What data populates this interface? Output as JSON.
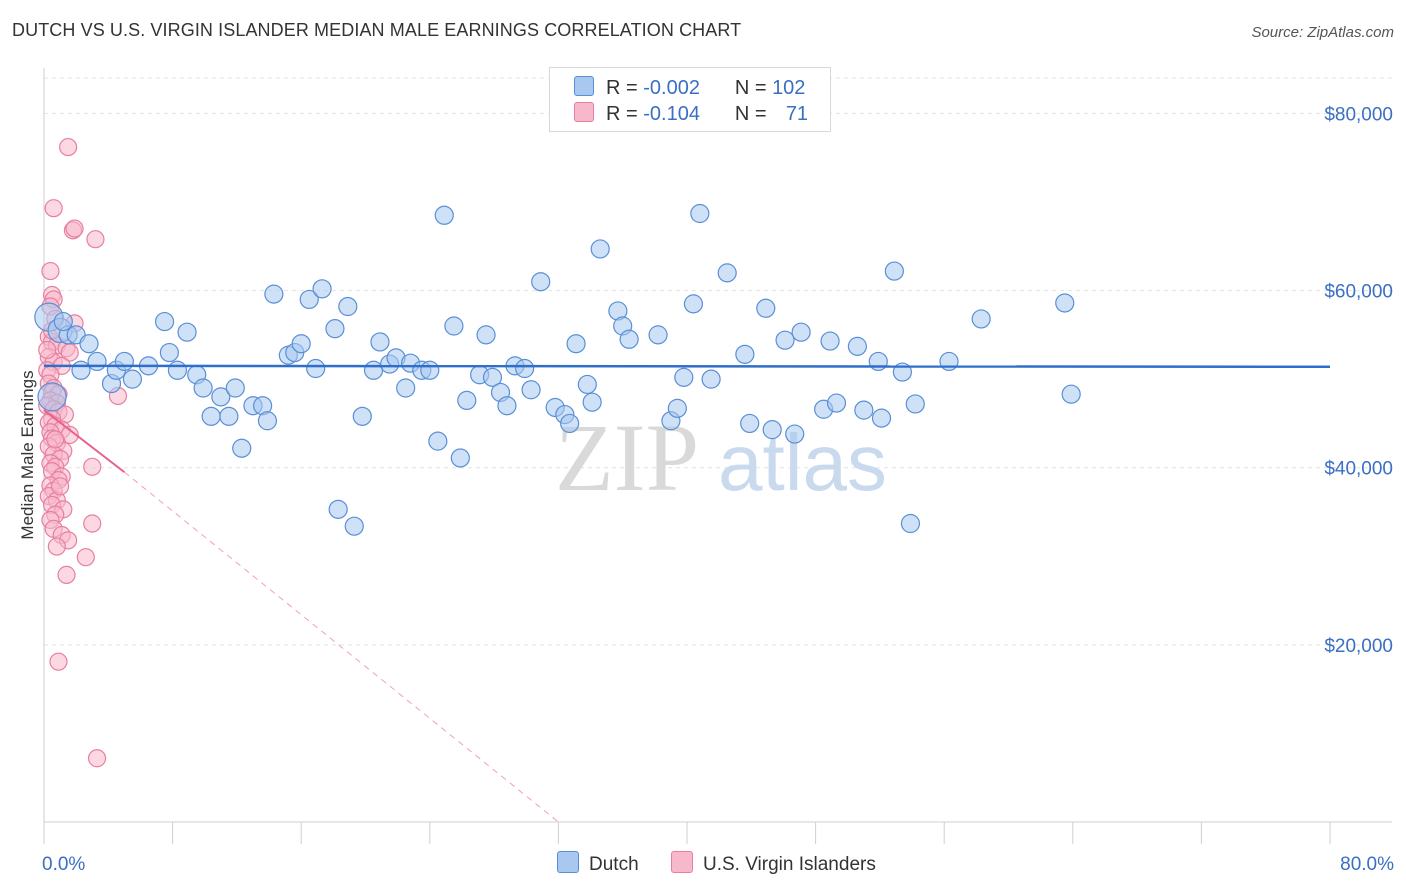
{
  "title": "DUTCH VS U.S. VIRGIN ISLANDER MEDIAN MALE EARNINGS CORRELATION CHART",
  "source": "Source: ZipAtlas.com",
  "watermark": {
    "zip": "ZIP",
    "atlas": "atlas"
  },
  "legend": {
    "r_label": "R =",
    "n_label": "N =",
    "rows": [
      {
        "r": "-0.002",
        "n": "102"
      },
      {
        "r": "-0.104",
        "n": "71"
      }
    ]
  },
  "colors": {
    "dutch_fill": "#a8c8f0",
    "dutch_stroke": "#5a8fd6",
    "dutch_line": "#2f6fcc",
    "vi_fill": "#f7b8cb",
    "vi_stroke": "#e87fa0",
    "vi_line": "#e8608a",
    "axis_text": "#3a6fc4",
    "grid": "#e3e3e3"
  },
  "chart_data": {
    "type": "scatter",
    "title": "DUTCH VS U.S. VIRGIN ISLANDER MEDIAN MALE EARNINGS CORRELATION CHART",
    "xlabel": "",
    "ylabel": "Median Male Earnings",
    "xlim": [
      0,
      80
    ],
    "ylim": [
      0,
      84000
    ],
    "x_tick_labels": [
      "0.0%",
      "80.0%"
    ],
    "y_ticks": [
      {
        "value": 20000,
        "label": "$20,000"
      },
      {
        "value": 40000,
        "label": "$40,000"
      },
      {
        "value": 60000,
        "label": "$60,000"
      },
      {
        "value": 80000,
        "label": "$80,000"
      }
    ],
    "series": [
      {
        "name": "Dutch",
        "trend": {
          "x1": 0,
          "y1": 51500,
          "x2": 80,
          "y2": 51400
        },
        "points": [
          [
            0.3,
            57000
          ],
          [
            0.5,
            48000
          ],
          [
            1.0,
            55500
          ],
          [
            1.5,
            55000
          ],
          [
            2.0,
            55000
          ],
          [
            2.8,
            54000
          ],
          [
            3.3,
            52000
          ],
          [
            4.2,
            49500
          ],
          [
            4.5,
            51000
          ],
          [
            5.0,
            52000
          ],
          [
            5.5,
            50000
          ],
          [
            6.5,
            51500
          ],
          [
            7.5,
            56500
          ],
          [
            7.8,
            53000
          ],
          [
            8.3,
            51000
          ],
          [
            8.9,
            55300
          ],
          [
            9.5,
            50500
          ],
          [
            9.9,
            49000
          ],
          [
            10.4,
            45800
          ],
          [
            11.0,
            48000
          ],
          [
            11.5,
            45800
          ],
          [
            11.9,
            49000
          ],
          [
            12.3,
            42200
          ],
          [
            13.0,
            47000
          ],
          [
            13.6,
            47000
          ],
          [
            13.9,
            45300
          ],
          [
            14.3,
            59600
          ],
          [
            15.2,
            52700
          ],
          [
            15.6,
            53000
          ],
          [
            16.0,
            54000
          ],
          [
            16.5,
            59000
          ],
          [
            16.9,
            51200
          ],
          [
            17.3,
            60200
          ],
          [
            18.1,
            55700
          ],
          [
            18.3,
            35300
          ],
          [
            18.9,
            58200
          ],
          [
            19.3,
            33400
          ],
          [
            19.8,
            45800
          ],
          [
            20.5,
            51000
          ],
          [
            20.9,
            54200
          ],
          [
            21.5,
            51700
          ],
          [
            21.9,
            52400
          ],
          [
            22.5,
            49000
          ],
          [
            22.8,
            51800
          ],
          [
            23.5,
            51000
          ],
          [
            24.0,
            51000
          ],
          [
            24.5,
            43000
          ],
          [
            24.9,
            68500
          ],
          [
            25.5,
            56000
          ],
          [
            25.9,
            41100
          ],
          [
            26.3,
            47600
          ],
          [
            27.1,
            50500
          ],
          [
            27.5,
            55000
          ],
          [
            27.9,
            50200
          ],
          [
            28.4,
            48500
          ],
          [
            28.8,
            47000
          ],
          [
            29.3,
            51500
          ],
          [
            29.9,
            51200
          ],
          [
            30.3,
            48800
          ],
          [
            30.9,
            61000
          ],
          [
            31.8,
            46800
          ],
          [
            32.4,
            46000
          ],
          [
            32.7,
            45000
          ],
          [
            33.1,
            54000
          ],
          [
            33.8,
            49400
          ],
          [
            34.1,
            47400
          ],
          [
            34.6,
            64700
          ],
          [
            35.7,
            57700
          ],
          [
            36.0,
            56000
          ],
          [
            36.4,
            54500
          ],
          [
            38.2,
            55000
          ],
          [
            39.0,
            45300
          ],
          [
            39.4,
            46700
          ],
          [
            39.8,
            50200
          ],
          [
            40.4,
            58500
          ],
          [
            40.8,
            68700
          ],
          [
            41.5,
            50000
          ],
          [
            42.5,
            62000
          ],
          [
            43.6,
            52800
          ],
          [
            43.9,
            45000
          ],
          [
            44.9,
            58000
          ],
          [
            45.3,
            44300
          ],
          [
            46.1,
            54400
          ],
          [
            46.7,
            43800
          ],
          [
            47.1,
            55300
          ],
          [
            48.5,
            46600
          ],
          [
            48.9,
            54300
          ],
          [
            49.3,
            47300
          ],
          [
            50.6,
            53700
          ],
          [
            51.0,
            46500
          ],
          [
            51.9,
            52000
          ],
          [
            52.1,
            45600
          ],
          [
            52.9,
            62200
          ],
          [
            53.4,
            50800
          ],
          [
            53.9,
            33700
          ],
          [
            54.2,
            47200
          ],
          [
            56.3,
            52000
          ],
          [
            58.3,
            56800
          ],
          [
            63.5,
            58600
          ],
          [
            63.9,
            48300
          ],
          [
            1.2,
            56500
          ],
          [
            2.3,
            51000
          ]
        ],
        "radii": [
          14,
          14,
          12
        ]
      },
      {
        "name": "U.S. Virgin Islanders",
        "trend": {
          "x1": 0,
          "y1": 46500,
          "x2": 5,
          "y2": 39500,
          "dash_x2": 32,
          "dash_y2": 0
        },
        "points": [
          [
            1.5,
            76200
          ],
          [
            0.6,
            69300
          ],
          [
            1.8,
            66800
          ],
          [
            3.2,
            65800
          ],
          [
            1.9,
            67000
          ],
          [
            0.4,
            62200
          ],
          [
            0.5,
            59500
          ],
          [
            0.6,
            59000
          ],
          [
            0.4,
            58200
          ],
          [
            0.7,
            56800
          ],
          [
            0.3,
            54800
          ],
          [
            0.5,
            54200
          ],
          [
            0.8,
            53800
          ],
          [
            1.4,
            53500
          ],
          [
            1.6,
            53000
          ],
          [
            0.3,
            52500
          ],
          [
            0.6,
            51900
          ],
          [
            1.1,
            51500
          ],
          [
            0.2,
            51000
          ],
          [
            0.4,
            50500
          ],
          [
            0.3,
            49500
          ],
          [
            0.6,
            49000
          ],
          [
            0.5,
            48500
          ],
          [
            0.9,
            48300
          ],
          [
            4.6,
            48100
          ],
          [
            0.4,
            47600
          ],
          [
            0.8,
            47300
          ],
          [
            0.2,
            47000
          ],
          [
            0.6,
            46600
          ],
          [
            0.9,
            46300
          ],
          [
            1.3,
            46000
          ],
          [
            0.5,
            45500
          ],
          [
            0.3,
            45100
          ],
          [
            0.7,
            44700
          ],
          [
            1.1,
            44300
          ],
          [
            0.4,
            44000
          ],
          [
            1.6,
            43700
          ],
          [
            0.5,
            43300
          ],
          [
            0.8,
            42800
          ],
          [
            0.3,
            42400
          ],
          [
            1.2,
            41900
          ],
          [
            0.6,
            41500
          ],
          [
            1.0,
            41000
          ],
          [
            0.4,
            40500
          ],
          [
            0.7,
            40100
          ],
          [
            0.5,
            39600
          ],
          [
            1.1,
            39000
          ],
          [
            0.9,
            38600
          ],
          [
            0.4,
            38000
          ],
          [
            0.6,
            37400
          ],
          [
            0.3,
            36800
          ],
          [
            0.8,
            36300
          ],
          [
            0.5,
            35800
          ],
          [
            1.2,
            35300
          ],
          [
            0.7,
            34700
          ],
          [
            0.4,
            34100
          ],
          [
            3.0,
            33700
          ],
          [
            0.6,
            33100
          ],
          [
            1.1,
            32400
          ],
          [
            1.5,
            31800
          ],
          [
            0.8,
            31100
          ],
          [
            2.6,
            29900
          ],
          [
            1.4,
            27900
          ],
          [
            0.9,
            18100
          ],
          [
            3.3,
            7200
          ],
          [
            3.0,
            40100
          ],
          [
            1.0,
            37900
          ],
          [
            0.2,
            53300
          ],
          [
            0.5,
            55500
          ],
          [
            1.9,
            56300
          ],
          [
            0.7,
            43200
          ]
        ]
      }
    ]
  },
  "bottom_legend": [
    {
      "label": "Dutch"
    },
    {
      "label": "U.S. Virgin Islanders"
    }
  ]
}
